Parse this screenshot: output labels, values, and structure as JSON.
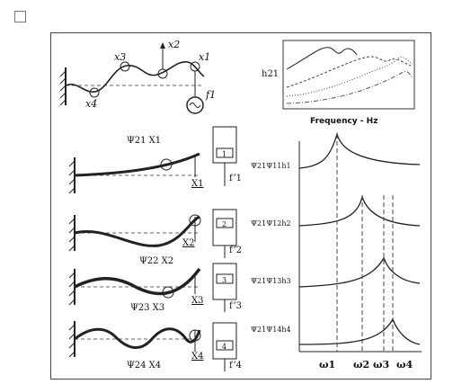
{
  "top": {
    "labels": {
      "x1": "x1",
      "x2": "x2",
      "x3": "x3",
      "x4": "x4",
      "force": "f1"
    },
    "inset": {
      "ylabel": "h21",
      "xlabel": "Frequency - Hz"
    }
  },
  "modes": [
    {
      "psi": "Ψ21 X1",
      "X": "X1",
      "f": "f’1",
      "box": "1",
      "frf": "Ψ21Ψ11h1"
    },
    {
      "psi": "Ψ22 X2",
      "X": "X2",
      "f": "f’2",
      "box": "2",
      "frf": "Ψ21Ψ12h2"
    },
    {
      "psi": "Ψ23 X3",
      "X": "X3",
      "f": "f’3",
      "box": "3",
      "frf": "Ψ21Ψ13h3"
    },
    {
      "psi": "Ψ24 X4",
      "X": "X4",
      "f": "f’4",
      "box": "4",
      "frf": "Ψ21Ψ14h4"
    }
  ],
  "omega": [
    "ω1",
    "ω2",
    "ω3",
    "ω4"
  ],
  "colors": {
    "line": "#222222",
    "dash": "#444444"
  }
}
